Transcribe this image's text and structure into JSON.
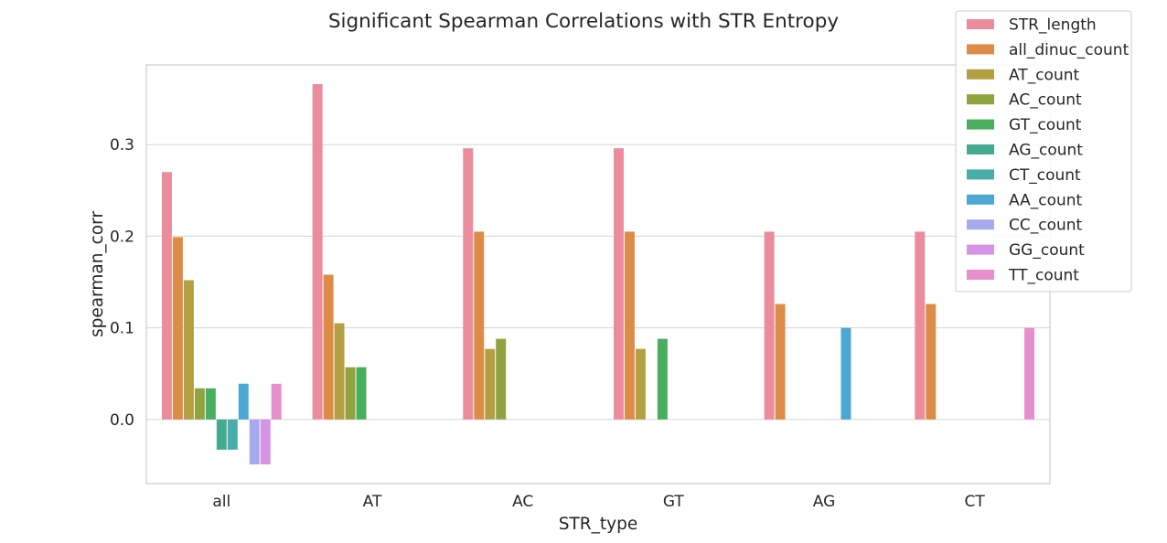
{
  "chart_data": {
    "type": "bar",
    "title": "Significant Spearman Correlations with STR Entropy",
    "xlabel": "STR_type",
    "ylabel": "spearman_corr",
    "categories": [
      "all",
      "AT",
      "AC",
      "GT",
      "AG",
      "CT"
    ],
    "ylim": [
      -0.07,
      0.387
    ],
    "yticks": [
      0.0,
      0.1,
      0.2,
      0.3
    ],
    "ytick_labels": [
      "0.0",
      "0.1",
      "0.2",
      "0.3"
    ],
    "grid": true,
    "legend_position": "top-right",
    "series": [
      {
        "name": "STR_length",
        "color": "#eb8c9d",
        "values": [
          0.27,
          0.366,
          0.296,
          0.296,
          0.205,
          0.205
        ]
      },
      {
        "name": "all_dinuc_count",
        "color": "#dd8c48",
        "values": [
          0.199,
          0.158,
          0.205,
          0.205,
          0.126,
          0.126
        ]
      },
      {
        "name": "AT_count",
        "color": "#b4a043",
        "values": [
          0.152,
          0.105,
          0.077,
          0.077,
          null,
          null
        ]
      },
      {
        "name": "AC_count",
        "color": "#90a33f",
        "values": [
          0.034,
          0.057,
          0.088,
          null,
          null,
          null
        ]
      },
      {
        "name": "GT_count",
        "color": "#49ae5d",
        "values": [
          0.034,
          0.057,
          null,
          0.088,
          null,
          null
        ]
      },
      {
        "name": "AG_count",
        "color": "#44ab91",
        "values": [
          -0.033,
          null,
          null,
          null,
          null,
          null
        ]
      },
      {
        "name": "CT_count",
        "color": "#47acaa",
        "values": [
          -0.033,
          null,
          null,
          null,
          null,
          null
        ]
      },
      {
        "name": "AA_count",
        "color": "#4ba8d3",
        "values": [
          0.039,
          null,
          null,
          null,
          0.1,
          null
        ]
      },
      {
        "name": "CC_count",
        "color": "#a6a9ec",
        "values": [
          -0.049,
          null,
          null,
          null,
          null,
          null
        ]
      },
      {
        "name": "GG_count",
        "color": "#d793e6",
        "values": [
          -0.049,
          null,
          null,
          null,
          null,
          null
        ]
      },
      {
        "name": "TT_count",
        "color": "#e68fcb",
        "values": [
          0.039,
          null,
          null,
          null,
          null,
          0.1
        ]
      }
    ]
  }
}
